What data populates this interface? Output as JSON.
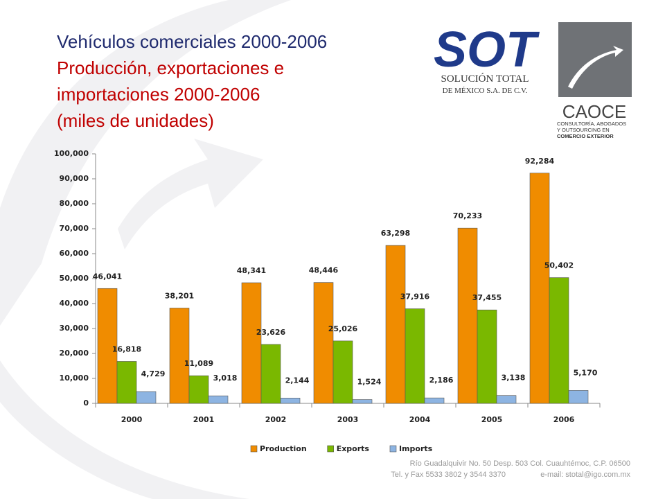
{
  "chart_data": {
    "type": "bar",
    "title": "Vehículos comerciales 2000-2006",
    "subtitle": [
      "Producción, exportaciones e",
      "importaciones 2000-2006",
      "(miles de unidades)"
    ],
    "categories": [
      "2000",
      "2001",
      "2002",
      "2003",
      "2004",
      "2005",
      "2006"
    ],
    "series": [
      {
        "name": "Production",
        "color": "#f08c00",
        "values": [
          46041,
          38201,
          48341,
          48446,
          63298,
          70233,
          92284
        ],
        "value_labels": [
          "46,041",
          "38,201",
          "48,341",
          "48,446",
          "63,298",
          "70,233",
          "92,284"
        ]
      },
      {
        "name": "Exports",
        "color": "#7ab800",
        "values": [
          16818,
          11089,
          23626,
          25026,
          37916,
          37455,
          50402
        ],
        "value_labels": [
          "16,818",
          "11,089",
          "23,626",
          "25,026",
          "37,916",
          "37,455",
          "50,402"
        ]
      },
      {
        "name": "Imports",
        "color": "#8db4e2",
        "values": [
          4729,
          3018,
          2144,
          1524,
          2186,
          3138,
          5170
        ],
        "value_labels": [
          "4,729",
          "3,018",
          "2,144",
          "1,524",
          "2,186",
          "3,138",
          "5,170"
        ]
      }
    ],
    "ylim": [
      0,
      100000
    ],
    "yticks": [
      0,
      {
        "value": 10000,
        "label": "10,000"
      },
      {
        "value": 20000,
        "label": "20,000"
      },
      {
        "value": 30000,
        "label": "30,000"
      },
      {
        "value": 40000,
        "label": "40,000"
      },
      {
        "value": 50000,
        "label": "50,000"
      },
      {
        "value": 60000,
        "label": "60,000"
      },
      {
        "value": 70000,
        "label": "70,000"
      },
      {
        "value": 80000,
        "label": "80,000"
      },
      {
        "value": 90000,
        "label": "90,000"
      },
      {
        "value": 100000,
        "label": "100,000"
      }
    ],
    "grid": false,
    "legend": "bottom"
  },
  "logos": {
    "sot": {
      "mark": "SOT",
      "line1": "SOLUCIÓN TOTAL",
      "line2": "DE MÉXICO S.A. DE C.V."
    },
    "caoce": {
      "mark": "CAOCE",
      "lines": [
        "CONSULTORÍA, ABOGADOS",
        "Y OUTSOURCING EN",
        "COMERCIO EXTERIOR"
      ]
    }
  },
  "footer": {
    "address": "Río Guadalquivir No. 50 Desp. 503 Col. Cuauhtémoc, C.P. 06500",
    "phone": "Tel. y Fax 5533 3802 y 3544 3370",
    "email": "e-mail: stotal@igo.com.mx"
  }
}
